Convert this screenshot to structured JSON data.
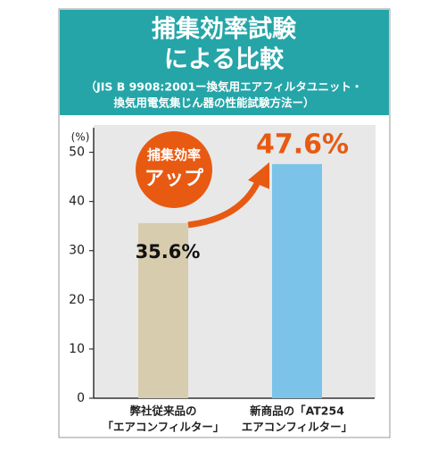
{
  "chart_data": {
    "type": "bar",
    "title": [
      "捕集効率試験",
      "による比較"
    ],
    "subtitle": [
      "（JIS B 9908:2001ー換気用エアフィルタユニット・",
      "換気用電気集じん器の性能試験方法ー）"
    ],
    "y_label": "(%)",
    "categories": [
      [
        "弊社従来品の",
        "「エアコンフィルター」"
      ],
      [
        "新商品の「AT254",
        "エアコンフィルター」"
      ]
    ],
    "values": [
      35.6,
      47.6
    ],
    "value_labels": [
      "35.6%",
      "47.6%"
    ],
    "colors": [
      "#d8ccae",
      "#7cc3ea"
    ],
    "value_label_colors": [
      "#111111",
      "#e85a12"
    ],
    "annotation": [
      "捕集効率",
      "アップ"
    ],
    "annotation_color": "#e85a12",
    "header_color": "#25a5a8",
    "ylim": [
      0,
      55
    ],
    "yticks": [
      0,
      10,
      20,
      30,
      40,
      50
    ]
  }
}
